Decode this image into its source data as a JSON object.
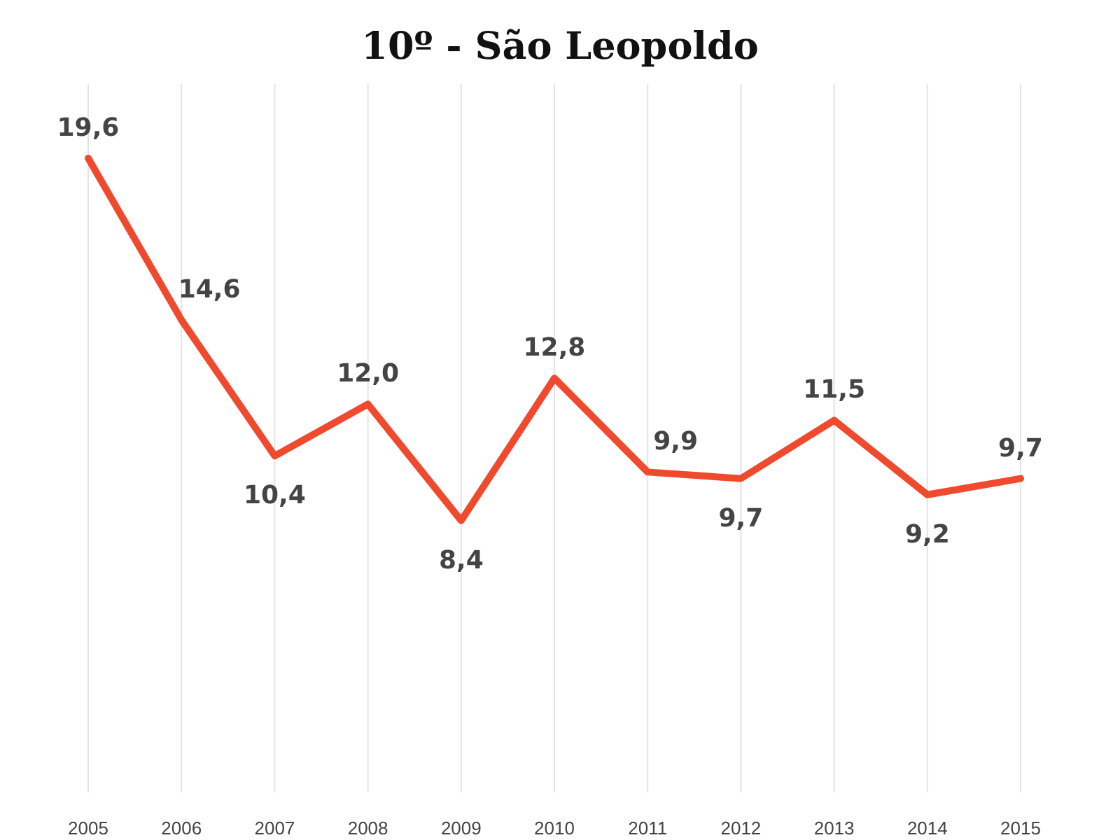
{
  "chart_data": {
    "type": "line",
    "title": "10º - São Leopoldo",
    "categories": [
      "2005",
      "2006",
      "2007",
      "2008",
      "2009",
      "2010",
      "2011",
      "2012",
      "2013",
      "2014",
      "2015"
    ],
    "series": [
      {
        "color": "#f04a2e",
        "values": [
          19.6,
          14.6,
          10.4,
          12.0,
          8.4,
          12.8,
          9.9,
          9.7,
          11.5,
          9.2,
          9.7
        ],
        "value_labels": [
          "19,6",
          "14,6",
          "10,4",
          "12,0",
          "8,4",
          "12,8",
          "9,9",
          "9,7",
          "11,5",
          "9,2",
          "9,7"
        ]
      }
    ],
    "tick_labels": "x",
    "grid": "x",
    "marker": "none",
    "line_style": "solid"
  }
}
